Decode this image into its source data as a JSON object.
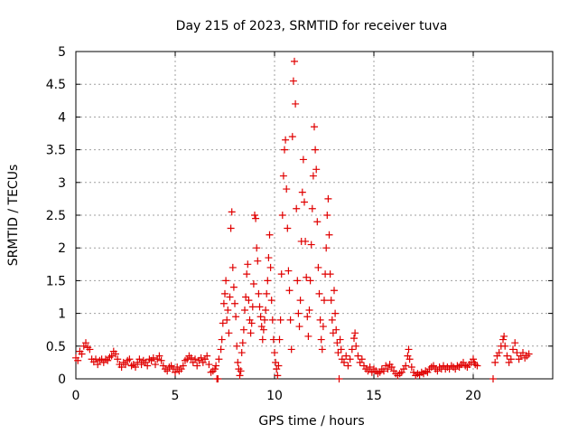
{
  "chart_data": {
    "type": "scatter",
    "title": "Day 215 of 2023, SRMTID for receiver tuva",
    "xlabel": "GPS time / hours",
    "ylabel": "SRMTID / TECUs",
    "xlim": [
      0,
      24
    ],
    "ylim": [
      0,
      5
    ],
    "x_ticks": [
      0,
      5,
      10,
      15,
      20
    ],
    "y_ticks": [
      0,
      0.5,
      1,
      1.5,
      2,
      2.5,
      3,
      3.5,
      4,
      4.5,
      5
    ],
    "x_tick_labels": [
      "0",
      "5",
      "10",
      "15",
      "20"
    ],
    "y_tick_labels": [
      "0",
      "0.5",
      "1",
      "1.5",
      "2",
      "2.5",
      "3",
      "3.5",
      "4",
      "4.5",
      "5"
    ],
    "grid": true,
    "marker": "+",
    "series": [
      {
        "name": "SRMTID",
        "color": "#e00000",
        "points": [
          [
            0.0,
            0.32
          ],
          [
            0.1,
            0.28
          ],
          [
            0.2,
            0.42
          ],
          [
            0.3,
            0.38
          ],
          [
            0.4,
            0.5
          ],
          [
            0.5,
            0.55
          ],
          [
            0.6,
            0.48
          ],
          [
            0.7,
            0.45
          ],
          [
            0.8,
            0.3
          ],
          [
            0.9,
            0.26
          ],
          [
            1.0,
            0.3
          ],
          [
            1.1,
            0.22
          ],
          [
            1.2,
            0.28
          ],
          [
            1.3,
            0.3
          ],
          [
            1.4,
            0.25
          ],
          [
            1.5,
            0.3
          ],
          [
            1.6,
            0.28
          ],
          [
            1.7,
            0.33
          ],
          [
            1.8,
            0.35
          ],
          [
            1.9,
            0.42
          ],
          [
            2.0,
            0.38
          ],
          [
            2.1,
            0.3
          ],
          [
            2.2,
            0.22
          ],
          [
            2.3,
            0.18
          ],
          [
            2.4,
            0.25
          ],
          [
            2.5,
            0.22
          ],
          [
            2.6,
            0.28
          ],
          [
            2.7,
            0.3
          ],
          [
            2.8,
            0.2
          ],
          [
            2.9,
            0.22
          ],
          [
            3.0,
            0.18
          ],
          [
            3.1,
            0.25
          ],
          [
            3.2,
            0.3
          ],
          [
            3.3,
            0.22
          ],
          [
            3.4,
            0.28
          ],
          [
            3.5,
            0.25
          ],
          [
            3.6,
            0.2
          ],
          [
            3.7,
            0.3
          ],
          [
            3.8,
            0.28
          ],
          [
            3.9,
            0.32
          ],
          [
            4.0,
            0.22
          ],
          [
            4.1,
            0.3
          ],
          [
            4.2,
            0.35
          ],
          [
            4.3,
            0.28
          ],
          [
            4.4,
            0.2
          ],
          [
            4.5,
            0.15
          ],
          [
            4.6,
            0.12
          ],
          [
            4.7,
            0.18
          ],
          [
            4.8,
            0.2
          ],
          [
            4.9,
            0.15
          ],
          [
            5.0,
            0.1
          ],
          [
            5.1,
            0.18
          ],
          [
            5.2,
            0.12
          ],
          [
            5.3,
            0.15
          ],
          [
            5.4,
            0.2
          ],
          [
            5.5,
            0.28
          ],
          [
            5.6,
            0.3
          ],
          [
            5.7,
            0.35
          ],
          [
            5.8,
            0.32
          ],
          [
            5.9,
            0.25
          ],
          [
            6.0,
            0.3
          ],
          [
            6.1,
            0.2
          ],
          [
            6.2,
            0.28
          ],
          [
            6.3,
            0.32
          ],
          [
            6.4,
            0.25
          ],
          [
            6.5,
            0.3
          ],
          [
            6.6,
            0.35
          ],
          [
            6.7,
            0.22
          ],
          [
            6.8,
            0.1
          ],
          [
            6.9,
            0.12
          ],
          [
            7.0,
            0.15
          ],
          [
            7.05,
            0.2
          ],
          [
            7.1,
            0.0
          ],
          [
            7.15,
            0.0
          ],
          [
            7.2,
            0.3
          ],
          [
            7.3,
            0.45
          ],
          [
            7.35,
            0.6
          ],
          [
            7.4,
            0.85
          ],
          [
            7.45,
            1.15
          ],
          [
            7.5,
            1.3
          ],
          [
            7.55,
            1.5
          ],
          [
            7.6,
            0.9
          ],
          [
            7.65,
            1.05
          ],
          [
            7.7,
            0.7
          ],
          [
            7.75,
            1.25
          ],
          [
            7.8,
            2.3
          ],
          [
            7.85,
            2.55
          ],
          [
            7.9,
            1.7
          ],
          [
            7.95,
            1.4
          ],
          [
            8.0,
            1.15
          ],
          [
            8.05,
            0.95
          ],
          [
            8.1,
            0.5
          ],
          [
            8.15,
            0.25
          ],
          [
            8.2,
            0.15
          ],
          [
            8.25,
            0.05
          ],
          [
            8.3,
            0.12
          ],
          [
            8.35,
            0.4
          ],
          [
            8.4,
            0.55
          ],
          [
            8.45,
            0.75
          ],
          [
            8.5,
            1.05
          ],
          [
            8.55,
            1.25
          ],
          [
            8.6,
            1.6
          ],
          [
            8.65,
            1.75
          ],
          [
            8.7,
            1.2
          ],
          [
            8.75,
            0.9
          ],
          [
            8.8,
            0.7
          ],
          [
            8.85,
            0.85
          ],
          [
            8.9,
            1.1
          ],
          [
            8.95,
            1.45
          ],
          [
            9.0,
            2.5
          ],
          [
            9.05,
            2.45
          ],
          [
            9.1,
            2.0
          ],
          [
            9.15,
            1.8
          ],
          [
            9.2,
            1.3
          ],
          [
            9.25,
            1.1
          ],
          [
            9.3,
            0.95
          ],
          [
            9.35,
            0.8
          ],
          [
            9.4,
            0.6
          ],
          [
            9.45,
            0.75
          ],
          [
            9.5,
            0.9
          ],
          [
            9.55,
            1.05
          ],
          [
            9.6,
            1.3
          ],
          [
            9.65,
            1.5
          ],
          [
            9.7,
            1.85
          ],
          [
            9.75,
            2.2
          ],
          [
            9.8,
            1.7
          ],
          [
            9.85,
            1.2
          ],
          [
            9.9,
            0.9
          ],
          [
            9.95,
            0.6
          ],
          [
            10.0,
            0.4
          ],
          [
            10.05,
            0.25
          ],
          [
            10.1,
            0.15
          ],
          [
            10.15,
            0.05
          ],
          [
            10.2,
            0.2
          ],
          [
            10.25,
            0.6
          ],
          [
            10.3,
            0.9
          ],
          [
            10.35,
            1.6
          ],
          [
            10.4,
            2.5
          ],
          [
            10.45,
            3.1
          ],
          [
            10.5,
            3.5
          ],
          [
            10.55,
            3.65
          ],
          [
            10.6,
            2.9
          ],
          [
            10.65,
            2.3
          ],
          [
            10.7,
            1.65
          ],
          [
            10.75,
            1.35
          ],
          [
            10.8,
            0.9
          ],
          [
            10.85,
            0.45
          ],
          [
            10.9,
            3.7
          ],
          [
            10.95,
            4.55
          ],
          [
            11.0,
            4.85
          ],
          [
            11.05,
            4.2
          ],
          [
            11.1,
            2.6
          ],
          [
            11.15,
            1.5
          ],
          [
            11.2,
            1.0
          ],
          [
            11.25,
            0.8
          ],
          [
            11.3,
            1.2
          ],
          [
            11.35,
            2.1
          ],
          [
            11.4,
            2.85
          ],
          [
            11.45,
            3.35
          ],
          [
            11.5,
            2.7
          ],
          [
            11.55,
            2.1
          ],
          [
            11.6,
            1.55
          ],
          [
            11.65,
            0.95
          ],
          [
            11.7,
            0.65
          ],
          [
            11.75,
            1.05
          ],
          [
            11.8,
            1.5
          ],
          [
            11.85,
            2.05
          ],
          [
            11.9,
            2.6
          ],
          [
            11.95,
            3.1
          ],
          [
            12.0,
            3.85
          ],
          [
            12.05,
            3.5
          ],
          [
            12.1,
            3.2
          ],
          [
            12.15,
            2.4
          ],
          [
            12.2,
            1.7
          ],
          [
            12.25,
            1.3
          ],
          [
            12.3,
            0.9
          ],
          [
            12.35,
            0.6
          ],
          [
            12.4,
            0.45
          ],
          [
            12.45,
            0.8
          ],
          [
            12.5,
            1.2
          ],
          [
            12.55,
            1.6
          ],
          [
            12.6,
            2.0
          ],
          [
            12.65,
            2.5
          ],
          [
            12.7,
            2.75
          ],
          [
            12.75,
            2.2
          ],
          [
            12.8,
            1.6
          ],
          [
            12.85,
            1.2
          ],
          [
            12.9,
            0.9
          ],
          [
            12.95,
            0.7
          ],
          [
            13.0,
            1.35
          ],
          [
            13.05,
            1.0
          ],
          [
            13.1,
            0.75
          ],
          [
            13.15,
            0.55
          ],
          [
            13.2,
            0.4
          ],
          [
            13.25,
            0.0
          ],
          [
            13.3,
            0.6
          ],
          [
            13.35,
            0.45
          ],
          [
            13.4,
            0.3
          ],
          [
            13.5,
            0.25
          ],
          [
            13.6,
            0.35
          ],
          [
            13.7,
            0.2
          ],
          [
            13.8,
            0.3
          ],
          [
            13.9,
            0.45
          ],
          [
            14.0,
            0.62
          ],
          [
            14.05,
            0.7
          ],
          [
            14.1,
            0.5
          ],
          [
            14.2,
            0.35
          ],
          [
            14.3,
            0.25
          ],
          [
            14.4,
            0.3
          ],
          [
            14.5,
            0.2
          ],
          [
            14.6,
            0.15
          ],
          [
            14.7,
            0.12
          ],
          [
            14.8,
            0.18
          ],
          [
            14.9,
            0.1
          ],
          [
            15.0,
            0.15
          ],
          [
            15.1,
            0.12
          ],
          [
            15.2,
            0.08
          ],
          [
            15.3,
            0.1
          ],
          [
            15.4,
            0.15
          ],
          [
            15.5,
            0.12
          ],
          [
            15.6,
            0.2
          ],
          [
            15.7,
            0.15
          ],
          [
            15.8,
            0.22
          ],
          [
            15.9,
            0.18
          ],
          [
            16.0,
            0.12
          ],
          [
            16.1,
            0.08
          ],
          [
            16.2,
            0.05
          ],
          [
            16.3,
            0.08
          ],
          [
            16.4,
            0.1
          ],
          [
            16.5,
            0.15
          ],
          [
            16.6,
            0.2
          ],
          [
            16.7,
            0.35
          ],
          [
            16.75,
            0.45
          ],
          [
            16.8,
            0.3
          ],
          [
            16.9,
            0.18
          ],
          [
            17.0,
            0.1
          ],
          [
            17.1,
            0.05
          ],
          [
            17.2,
            0.08
          ],
          [
            17.3,
            0.06
          ],
          [
            17.4,
            0.1
          ],
          [
            17.5,
            0.08
          ],
          [
            17.6,
            0.12
          ],
          [
            17.7,
            0.1
          ],
          [
            17.8,
            0.15
          ],
          [
            17.9,
            0.18
          ],
          [
            18.0,
            0.2
          ],
          [
            18.1,
            0.15
          ],
          [
            18.2,
            0.12
          ],
          [
            18.3,
            0.18
          ],
          [
            18.4,
            0.15
          ],
          [
            18.5,
            0.2
          ],
          [
            18.6,
            0.15
          ],
          [
            18.7,
            0.18
          ],
          [
            18.8,
            0.15
          ],
          [
            18.9,
            0.2
          ],
          [
            19.0,
            0.18
          ],
          [
            19.1,
            0.15
          ],
          [
            19.2,
            0.2
          ],
          [
            19.3,
            0.18
          ],
          [
            19.4,
            0.22
          ],
          [
            19.5,
            0.25
          ],
          [
            19.6,
            0.2
          ],
          [
            19.7,
            0.18
          ],
          [
            19.8,
            0.22
          ],
          [
            19.9,
            0.25
          ],
          [
            20.0,
            0.3
          ],
          [
            20.05,
            0.25
          ],
          [
            20.1,
            0.22
          ],
          [
            20.2,
            0.2
          ],
          [
            21.0,
            0.0
          ],
          [
            21.1,
            0.25
          ],
          [
            21.2,
            0.35
          ],
          [
            21.3,
            0.4
          ],
          [
            21.4,
            0.5
          ],
          [
            21.5,
            0.6
          ],
          [
            21.55,
            0.65
          ],
          [
            21.6,
            0.5
          ],
          [
            21.7,
            0.35
          ],
          [
            21.8,
            0.25
          ],
          [
            21.9,
            0.3
          ],
          [
            22.0,
            0.45
          ],
          [
            22.1,
            0.55
          ],
          [
            22.2,
            0.4
          ],
          [
            22.3,
            0.3
          ],
          [
            22.4,
            0.35
          ],
          [
            22.5,
            0.4
          ],
          [
            22.6,
            0.32
          ],
          [
            22.7,
            0.35
          ],
          [
            22.8,
            0.38
          ]
        ]
      }
    ]
  }
}
